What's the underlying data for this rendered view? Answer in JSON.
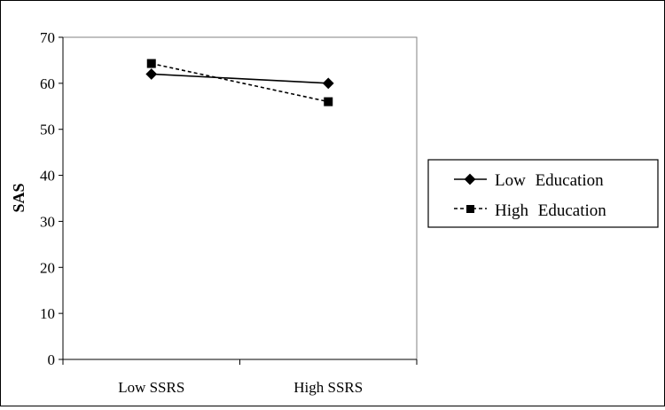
{
  "chart_data": {
    "type": "line",
    "categories": [
      "Low SSRS",
      "High SSRS"
    ],
    "series": [
      {
        "name": "Low Education",
        "values": [
          62,
          60
        ],
        "marker": "diamond",
        "line_style": "solid",
        "color": "#000000"
      },
      {
        "name": "High Education",
        "values": [
          64.3,
          56
        ],
        "marker": "square",
        "line_style": "dashed",
        "color": "#000000"
      }
    ],
    "xlabel": "",
    "ylabel": "SAS",
    "ylim": [
      0,
      70
    ],
    "yticks": [
      0,
      10,
      20,
      30,
      40,
      50,
      60,
      70
    ],
    "grid": false,
    "legend_position": "right"
  }
}
